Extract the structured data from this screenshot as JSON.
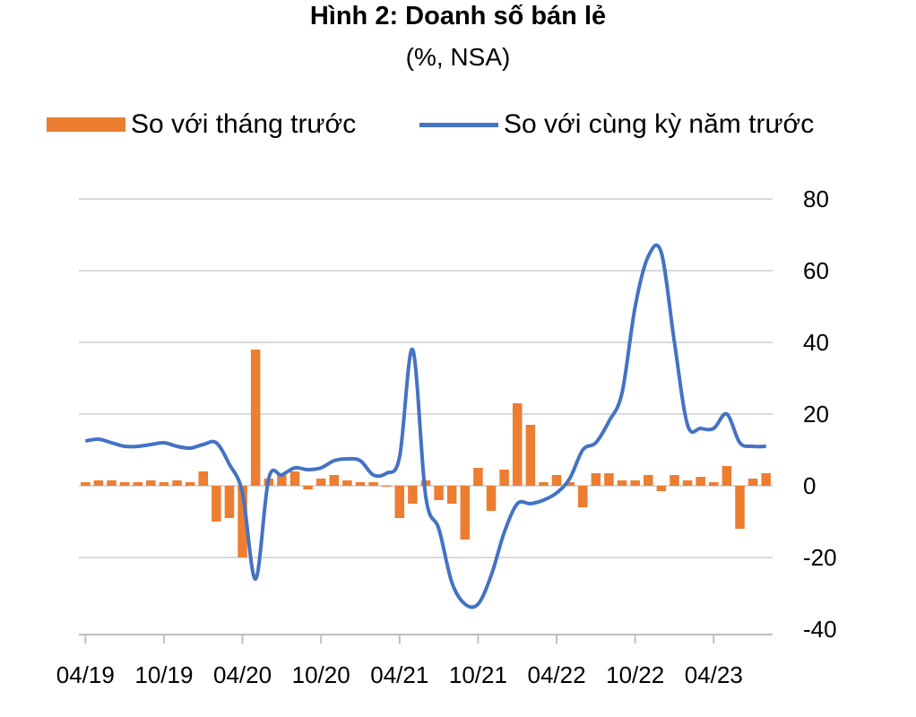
{
  "chart_data": {
    "type": "bar+line",
    "title": "Hình 2: Doanh số bán lẻ",
    "subtitle": "(%, NSA)",
    "legend": {
      "placement": "top",
      "entries": [
        {
          "name": "So với tháng trước",
          "type": "bar",
          "color": "#ED7D31"
        },
        {
          "name": "So với cùng kỳ năm trước",
          "type": "line",
          "color": "#4472C4"
        }
      ]
    },
    "y_axis": {
      "position": "right",
      "ylim": [
        -40,
        80
      ],
      "ticks": [
        -40,
        -20,
        0,
        20,
        40,
        60,
        80
      ]
    },
    "x_tick_labels": [
      "04/19",
      "10/19",
      "04/20",
      "10/20",
      "04/21",
      "10/21",
      "04/22",
      "10/22",
      "04/23"
    ],
    "grid": true,
    "series": [
      {
        "name": "So với tháng trước",
        "type": "bar",
        "values": [
          1,
          1.5,
          1.5,
          1,
          1,
          1.5,
          1,
          1.5,
          1,
          4,
          -10,
          -9,
          -20,
          38,
          2,
          3,
          4,
          -1,
          2,
          3,
          1.5,
          1,
          1,
          0,
          -9,
          -5,
          1.5,
          -4,
          -5,
          -15,
          5,
          -7,
          4.5,
          23,
          17,
          1,
          3,
          1,
          -6,
          3.5,
          3.5,
          1.5,
          1.5,
          3,
          -1.5,
          3,
          1.5,
          2.5,
          1,
          5.5,
          -12,
          2,
          3.5
        ]
      },
      {
        "name": "So với cùng kỳ năm trước",
        "type": "line",
        "values": [
          12.5,
          13,
          12,
          11,
          11,
          11.5,
          12,
          11,
          10.5,
          11.5,
          12,
          6,
          -2,
          -26,
          2,
          3,
          5,
          4.5,
          5,
          7,
          7.5,
          7,
          3,
          3.5,
          8,
          38,
          -3,
          -12,
          -27,
          -33,
          -33,
          -25,
          -13,
          -5,
          -5,
          -4,
          -2,
          2,
          10,
          12,
          18,
          26,
          50,
          64,
          65,
          40,
          17,
          16,
          16,
          20,
          12,
          11,
          11
        ]
      }
    ]
  }
}
